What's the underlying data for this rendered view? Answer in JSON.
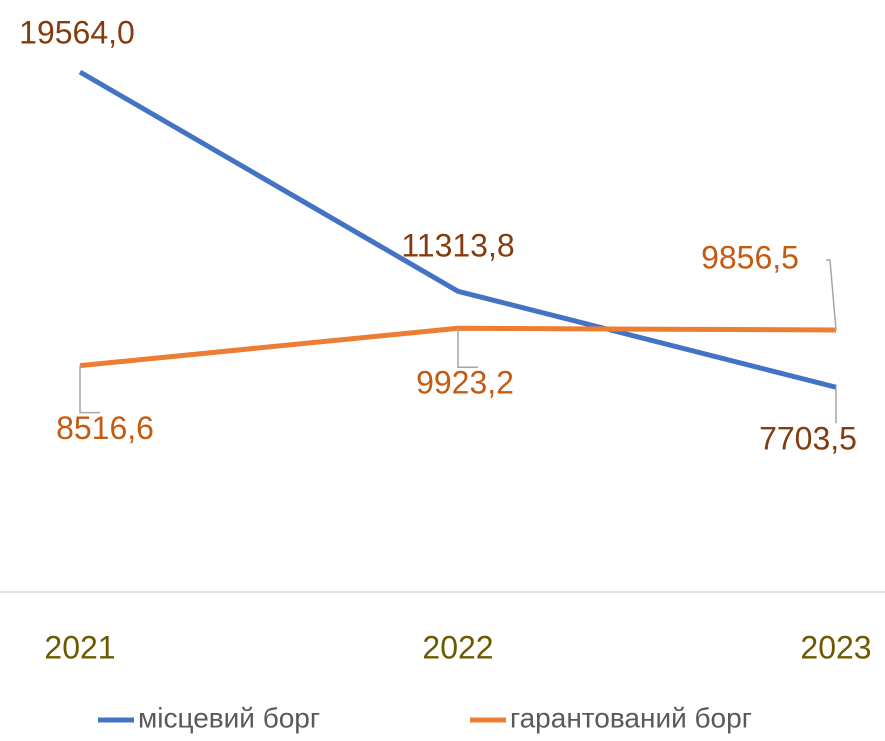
{
  "chart_data": {
    "type": "line",
    "categories": [
      "2021",
      "2022",
      "2023"
    ],
    "series": [
      {
        "name": "місцевий борг",
        "color": "#4472c4",
        "label_color": "#843c0c",
        "values": [
          19564.0,
          11313.8,
          7703.5
        ],
        "value_labels": [
          "19564,0",
          "11313,8",
          "7703,5"
        ]
      },
      {
        "name": "гарантований борг",
        "color": "#ed7d31",
        "label_color": "#c55a11",
        "values": [
          8516.6,
          9923.2,
          9856.5
        ],
        "value_labels": [
          "8516,6",
          "9923,2",
          "9856,5"
        ]
      }
    ],
    "ylim": [
      0,
      20000
    ],
    "legend": "bottom"
  }
}
